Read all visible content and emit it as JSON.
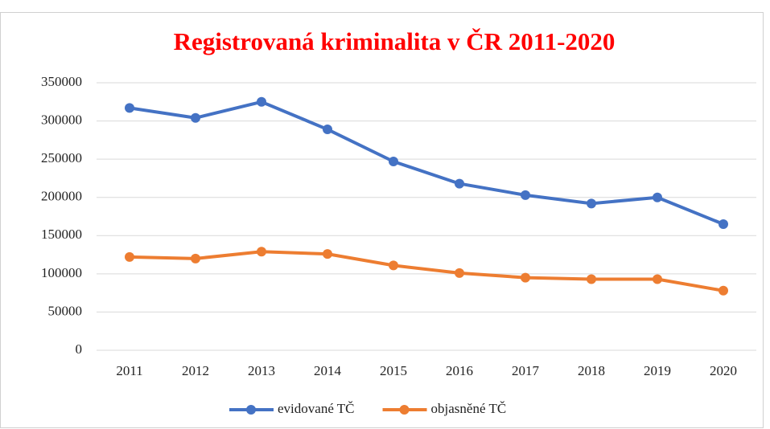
{
  "chart_data": {
    "type": "line",
    "title": "Registrovaná  kriminalita  v ČR 2011-2020",
    "categories": [
      "2011",
      "2012",
      "2013",
      "2014",
      "2015",
      "2016",
      "2017",
      "2018",
      "2019",
      "2020"
    ],
    "series": [
      {
        "name": "evidované TČ",
        "color": "#4472c4",
        "values": [
          317000,
          304000,
          325000,
          289000,
          247000,
          218000,
          203000,
          192000,
          200000,
          165000
        ]
      },
      {
        "name": "objasněné TČ",
        "color": "#ed7d31",
        "values": [
          122000,
          120000,
          129000,
          126000,
          111000,
          101000,
          95000,
          93000,
          93000,
          78000
        ]
      }
    ],
    "ylim": [
      0,
      350000
    ],
    "yticks": [
      0,
      50000,
      100000,
      150000,
      200000,
      250000,
      300000,
      350000
    ],
    "grid": true,
    "legend": "bottom"
  }
}
